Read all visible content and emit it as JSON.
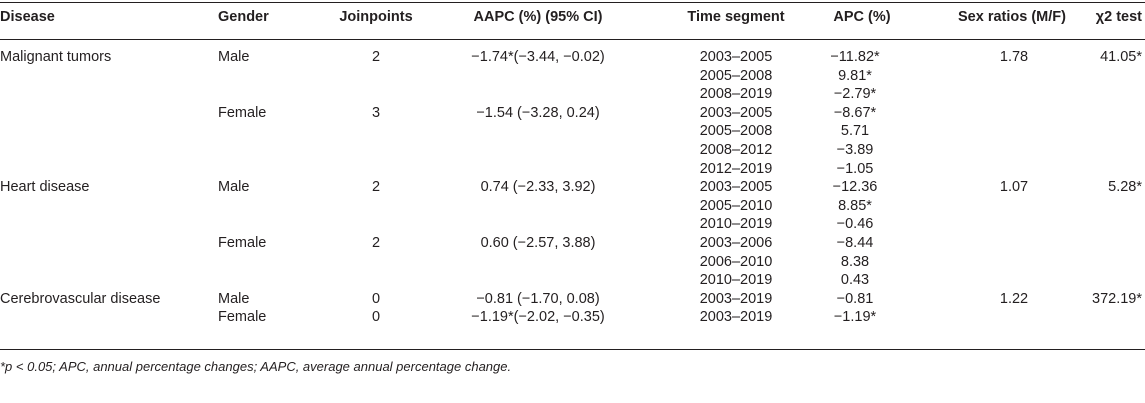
{
  "table": {
    "headers": {
      "disease": "Disease",
      "gender": "Gender",
      "joinpoints": "Joinpoints",
      "aapc": "AAPC (%) (95% CI)",
      "time_segment": "Time segment",
      "apc": "APC (%)",
      "sex_ratio": "Sex ratios (M/F)",
      "chi2": "χ2 test"
    },
    "rows": [
      {
        "disease": "Malignant tumors",
        "gender": "Male",
        "joinpoints": "2",
        "aapc": "−1.74*(−3.44, −0.02)",
        "time_segment": "2003–2005",
        "apc": "−11.82*",
        "sex_ratio": "1.78",
        "chi2": "41.05*"
      },
      {
        "disease": "",
        "gender": "",
        "joinpoints": "",
        "aapc": "",
        "time_segment": "2005–2008",
        "apc": "9.81*",
        "sex_ratio": "",
        "chi2": ""
      },
      {
        "disease": "",
        "gender": "",
        "joinpoints": "",
        "aapc": "",
        "time_segment": "2008–2019",
        "apc": "−2.79*",
        "sex_ratio": "",
        "chi2": ""
      },
      {
        "disease": "",
        "gender": "Female",
        "joinpoints": "3",
        "aapc": "−1.54 (−3.28, 0.24)",
        "time_segment": "2003–2005",
        "apc": "−8.67*",
        "sex_ratio": "",
        "chi2": ""
      },
      {
        "disease": "",
        "gender": "",
        "joinpoints": "",
        "aapc": "",
        "time_segment": "2005–2008",
        "apc": "5.71",
        "sex_ratio": "",
        "chi2": ""
      },
      {
        "disease": "",
        "gender": "",
        "joinpoints": "",
        "aapc": "",
        "time_segment": "2008–2012",
        "apc": "−3.89",
        "sex_ratio": "",
        "chi2": ""
      },
      {
        "disease": "",
        "gender": "",
        "joinpoints": "",
        "aapc": "",
        "time_segment": "2012–2019",
        "apc": "−1.05",
        "sex_ratio": "",
        "chi2": ""
      },
      {
        "disease": "Heart disease",
        "gender": "Male",
        "joinpoints": "2",
        "aapc": "0.74 (−2.33, 3.92)",
        "time_segment": "2003–2005",
        "apc": "−12.36",
        "sex_ratio": "1.07",
        "chi2": "5.28*"
      },
      {
        "disease": "",
        "gender": "",
        "joinpoints": "",
        "aapc": "",
        "time_segment": "2005–2010",
        "apc": "8.85*",
        "sex_ratio": "",
        "chi2": ""
      },
      {
        "disease": "",
        "gender": "",
        "joinpoints": "",
        "aapc": "",
        "time_segment": "2010–2019",
        "apc": "−0.46",
        "sex_ratio": "",
        "chi2": ""
      },
      {
        "disease": "",
        "gender": "Female",
        "joinpoints": "2",
        "aapc": "0.60 (−2.57, 3.88)",
        "time_segment": "2003–2006",
        "apc": "−8.44",
        "sex_ratio": "",
        "chi2": ""
      },
      {
        "disease": "",
        "gender": "",
        "joinpoints": "",
        "aapc": "",
        "time_segment": "2006–2010",
        "apc": "8.38",
        "sex_ratio": "",
        "chi2": ""
      },
      {
        "disease": "",
        "gender": "",
        "joinpoints": "",
        "aapc": "",
        "time_segment": "2010–2019",
        "apc": "0.43",
        "sex_ratio": "",
        "chi2": ""
      },
      {
        "disease": "Cerebrovascular disease",
        "gender": "Male",
        "joinpoints": "0",
        "aapc": "−0.81 (−1.70, 0.08)",
        "time_segment": "2003–2019",
        "apc": "−0.81",
        "sex_ratio": "1.22",
        "chi2": "372.19*"
      },
      {
        "disease": "",
        "gender": "Female",
        "joinpoints": "0",
        "aapc": "−1.19*(−2.02, −0.35)",
        "time_segment": "2003–2019",
        "apc": "−1.19*",
        "sex_ratio": "",
        "chi2": ""
      }
    ],
    "footnote": "*p < 0.05; APC, annual percentage changes; AAPC, average annual percentage change."
  }
}
